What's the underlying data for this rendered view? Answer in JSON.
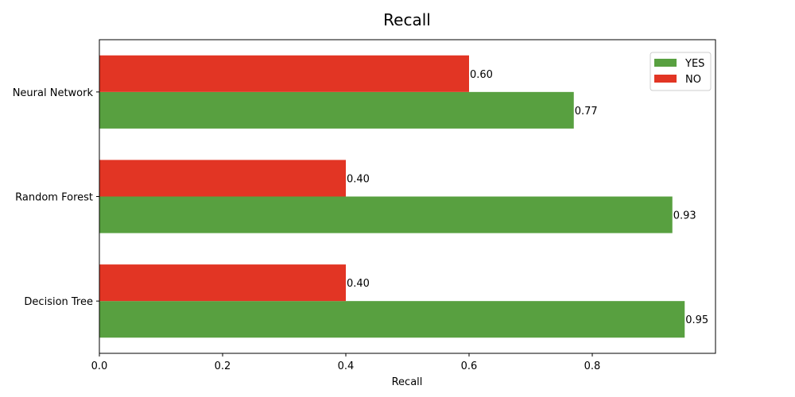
{
  "chart_data": {
    "type": "bar",
    "orientation": "horizontal",
    "title": "Recall",
    "xlabel": "Recall",
    "ylabel": "",
    "xlim": [
      0,
      1.0
    ],
    "xticks": [
      0.0,
      0.2,
      0.4,
      0.6,
      0.8
    ],
    "xtick_labels": [
      "0.0",
      "0.2",
      "0.4",
      "0.6",
      "0.8"
    ],
    "categories": [
      "Decision Tree",
      "Random Forest",
      "Neural Network"
    ],
    "series": [
      {
        "name": "YES",
        "color": "#58a040",
        "values": [
          0.95,
          0.93,
          0.77
        ],
        "value_labels": [
          "0.95",
          "0.93",
          "0.77"
        ]
      },
      {
        "name": "NO",
        "color": "#e23524",
        "values": [
          0.4,
          0.4,
          0.6
        ],
        "value_labels": [
          "0.40",
          "0.40",
          "0.60"
        ]
      }
    ],
    "grid": false,
    "legend_position": "top-right"
  }
}
